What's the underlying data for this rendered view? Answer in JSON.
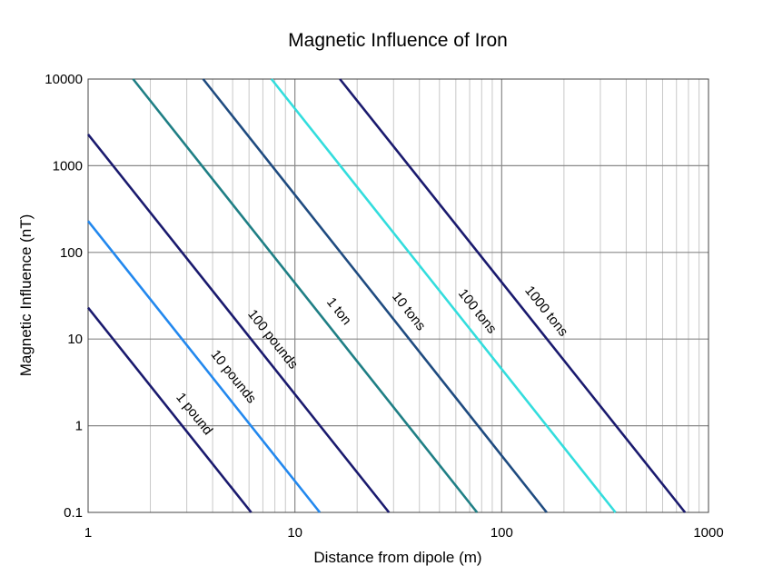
{
  "chart_data": {
    "type": "line",
    "title": "Magnetic Influence of Iron",
    "xlabel": "Distance from dipole (m)",
    "ylabel": "Magnetic Influence (nT)",
    "xscale": "log",
    "yscale": "log",
    "xlim": [
      1,
      1000
    ],
    "ylim": [
      0.1,
      10000
    ],
    "x_ticks": [
      "1",
      "10",
      "100",
      "1000"
    ],
    "y_ticks": [
      "0.1",
      "1",
      "10",
      "100",
      "1000",
      "10000"
    ],
    "grid": true,
    "series": [
      {
        "name": "1 pound",
        "color": "#1a1a6e",
        "points": [
          [
            1,
            23
          ],
          [
            6.15,
            0.1
          ]
        ]
      },
      {
        "name": "10 pounds",
        "color": "#2288ee",
        "points": [
          [
            1,
            230
          ],
          [
            13.2,
            0.1
          ]
        ]
      },
      {
        "name": "100 pounds",
        "color": "#1a1a6e",
        "points": [
          [
            1,
            2300
          ],
          [
            28.5,
            0.1
          ]
        ]
      },
      {
        "name": "1 ton",
        "color": "#1f7f85",
        "points": [
          [
            1.65,
            10000
          ],
          [
            76,
            0.1
          ]
        ]
      },
      {
        "name": "10 tons",
        "color": "#1f4b80",
        "points": [
          [
            3.6,
            10000
          ],
          [
            165,
            0.1
          ]
        ]
      },
      {
        "name": "100 tons",
        "color": "#33dddd",
        "points": [
          [
            7.7,
            10000
          ],
          [
            355,
            0.1
          ]
        ]
      },
      {
        "name": "1000 tons",
        "color": "#1a1a6e",
        "points": [
          [
            16.5,
            10000
          ],
          [
            770,
            0.1
          ]
        ]
      }
    ]
  }
}
